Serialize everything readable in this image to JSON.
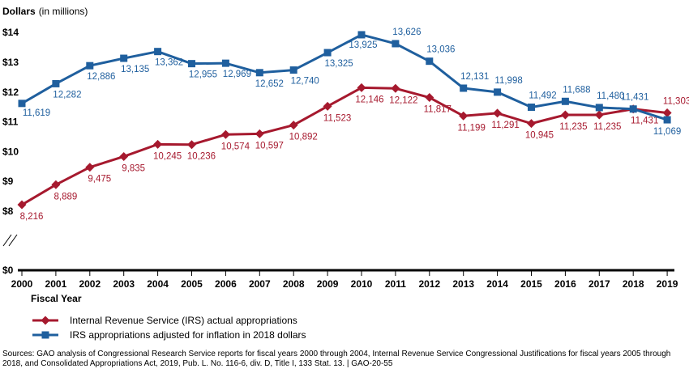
{
  "chart_data": {
    "type": "line",
    "ylabel": "Dollars",
    "ylabel_unit": "(in millions)",
    "xlabel": "Fiscal Year",
    "x": [
      "2000",
      "2001",
      "2002",
      "2003",
      "2004",
      "2005",
      "2006",
      "2007",
      "2008",
      "2009",
      "2010",
      "2011",
      "2012",
      "2013",
      "2014",
      "2015",
      "2016",
      "2017",
      "2018",
      "2019"
    ],
    "yticks": [
      "$0",
      "$8",
      "$9",
      "$10",
      "$11",
      "$12",
      "$13",
      "$14"
    ],
    "ylim": [
      8,
      14
    ],
    "axis_break": true,
    "series": [
      {
        "name": "Internal Revenue Service (IRS) actual appropriations",
        "color": "#a6192e",
        "marker": "diamond",
        "values": [
          8216,
          8889,
          9475,
          9835,
          10245,
          10236,
          10574,
          10597,
          10892,
          11523,
          12146,
          12122,
          11817,
          11199,
          11291,
          10945,
          11235,
          11235,
          11431,
          11303
        ],
        "labels": [
          "8,216",
          "8,889",
          "9,475",
          "9,835",
          "10,245",
          "10,236",
          "10,574",
          "10,597",
          "10,892",
          "11,523",
          "12,146",
          "12,122",
          "11,817",
          "11,199",
          "11,291",
          "10,945",
          "11,235",
          "11,235",
          "11,431",
          "11,303"
        ]
      },
      {
        "name": "IRS appropriations adjusted for inflation in 2018 dollars",
        "color": "#1f5f9e",
        "marker": "square",
        "values": [
          11619,
          12282,
          12886,
          13135,
          13362,
          12955,
          12969,
          12652,
          12740,
          13325,
          13925,
          13626,
          13036,
          12131,
          11998,
          11492,
          11688,
          11480,
          11431,
          11069
        ],
        "labels": [
          "11,619",
          "12,282",
          "12,886",
          "13,135",
          "13,362",
          "12,955",
          "12,969",
          "12,652",
          "12,740",
          "13,325",
          "13,925",
          "13,626",
          "13,036",
          "12,131",
          "11,998",
          "11,492",
          "11,688",
          "11,480",
          "11,431",
          "11,069"
        ]
      }
    ],
    "grid": false,
    "legend_position": "bottom-left"
  },
  "source_note": "Sources: GAO analysis of Congressional Research Service reports for fiscal years 2000 through 2004, Internal Revenue Service Congressional Justifications for fiscal years 2005 through 2018, and Consolidated Appropriations Act, 2019, Pub. L. No. 116-6, div. D, Title I, 133 Stat. 13.  | GAO-20-55"
}
